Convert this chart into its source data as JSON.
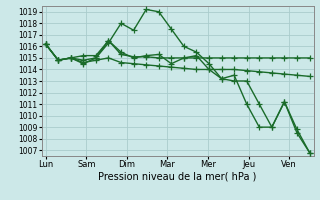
{
  "xlabel": "Pression niveau de la mer( hPa )",
  "bg_color": "#cce8e8",
  "grid_color": "#aacccc",
  "line_color": "#1a6b2a",
  "ylim": [
    1006.5,
    1019.5
  ],
  "yticks": [
    1007,
    1008,
    1009,
    1010,
    1011,
    1012,
    1013,
    1014,
    1015,
    1016,
    1017,
    1018,
    1019
  ],
  "xtick_labels": [
    "Lun",
    "Sam",
    "Dim",
    "Mar",
    "Mer",
    "Jeu",
    "Ven"
  ],
  "xtick_positions": [
    0,
    2,
    4,
    6,
    8,
    10,
    12
  ],
  "series": [
    [
      1016.2,
      1014.8,
      1015.0,
      1014.8,
      1015.0,
      1016.3,
      1018.0,
      1017.4,
      1019.2,
      1019.0,
      1017.5,
      1016.0,
      1015.5,
      1014.5,
      1013.2,
      1013.0,
      1013.0,
      1011.0,
      1009.0,
      1011.2,
      1008.8,
      1006.8
    ],
    [
      1016.2,
      1014.8,
      1015.0,
      1015.2,
      1015.2,
      1016.5,
      1015.3,
      1015.1,
      1015.1,
      1015.0,
      1015.0,
      1015.0,
      1015.0,
      1015.0,
      1015.0,
      1015.0,
      1015.0,
      1015.0,
      1015.0,
      1015.0,
      1015.0,
      1015.0
    ],
    [
      1016.2,
      1014.8,
      1015.0,
      1014.6,
      1014.8,
      1015.0,
      1014.6,
      1014.5,
      1014.4,
      1014.3,
      1014.2,
      1014.1,
      1014.0,
      1014.0,
      1014.0,
      1014.0,
      1013.9,
      1013.8,
      1013.7,
      1013.6,
      1013.5,
      1013.4
    ],
    [
      1016.2,
      1014.8,
      1015.0,
      1014.5,
      1015.0,
      1016.5,
      1015.5,
      1015.0,
      1015.2,
      1015.3,
      1014.5,
      1015.0,
      1015.2,
      1014.0,
      1013.2,
      1013.5,
      1011.0,
      1009.0,
      1009.0,
      1011.2,
      1008.5,
      1006.8
    ]
  ],
  "marker": "+",
  "marker_size": 4,
  "linewidth": 1.0
}
